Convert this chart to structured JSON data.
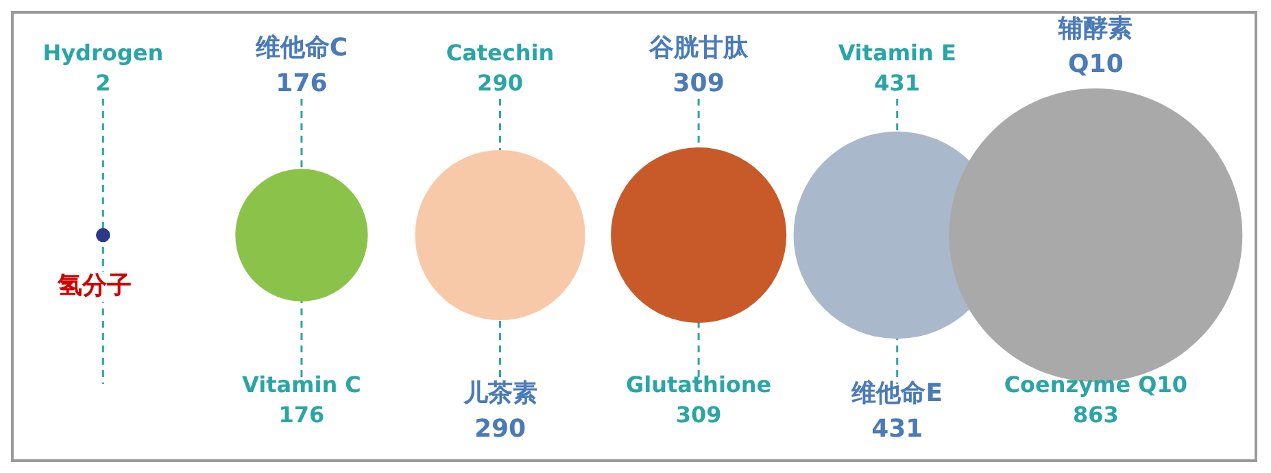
{
  "chart_data": {
    "type": "other",
    "categories": [
      "Hydrogen",
      "Vitamin C",
      "Catechin",
      "Glutathione",
      "Vitamin E",
      "Coenzyme Q10"
    ],
    "values": [
      2,
      176,
      290,
      309,
      431,
      863
    ],
    "colors": [
      "#2b3a86",
      "#8bc34a",
      "#f8c9a8",
      "#c85a2a",
      "#aab8cc",
      "#a9a9a9"
    ],
    "data_labels": true,
    "annotations": [
      "氢分子",
      "维他命C\n176",
      "儿茶素\n290",
      "谷胱甘肽\n309",
      "维他命E\n431",
      "辅酵素\nQ10"
    ]
  }
}
